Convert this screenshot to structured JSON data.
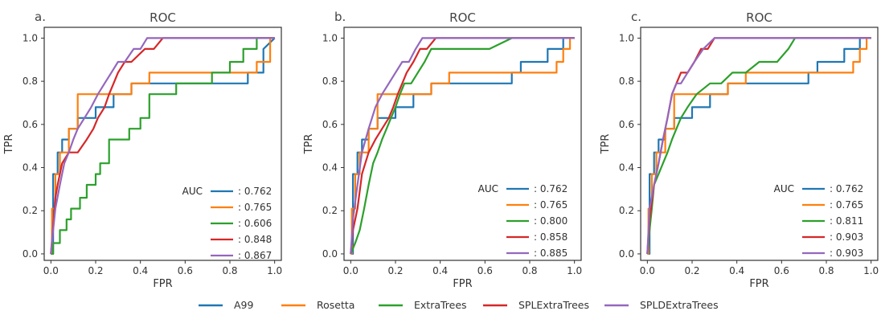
{
  "colors": {
    "A99": "#1f77b4",
    "Rosetta": "#ff7f0e",
    "ExtraTrees": "#2ca02c",
    "SPLExtraTrees": "#d62728",
    "SPLDExtraTrees": "#9467bd",
    "frame": "#333333"
  },
  "legend": {
    "entries": [
      "A99",
      "Rosetta",
      "ExtraTrees",
      "SPLExtraTrees",
      "SPLDExtraTrees"
    ]
  },
  "chart_data": [
    {
      "type": "line",
      "letter": "a.",
      "title": "ROC",
      "xlabel": "FPR",
      "ylabel": "TPR",
      "xlim": [
        -0.03,
        1.03
      ],
      "ylim": [
        -0.03,
        1.05
      ],
      "xticks": [
        "0.0",
        "0.2",
        "0.4",
        "0.6",
        "0.8",
        "1.0"
      ],
      "yticks": [
        "0.0",
        "0.2",
        "0.4",
        "0.6",
        "0.8",
        "1.0"
      ],
      "auc_label": "AUC",
      "grid": false,
      "legend_position": "lower-right",
      "series": [
        {
          "name": "A99",
          "auc": ": 0.762",
          "x": [
            0,
            0.01,
            0.01,
            0.03,
            0.03,
            0.05,
            0.05,
            0.08,
            0.08,
            0.12,
            0.12,
            0.2,
            0.2,
            0.28,
            0.28,
            0.36,
            0.36,
            0.52,
            0.52,
            0.88,
            0.88,
            0.95,
            0.95,
            1.0
          ],
          "y": [
            0,
            0,
            0.37,
            0.37,
            0.47,
            0.47,
            0.53,
            0.53,
            0.58,
            0.58,
            0.63,
            0.63,
            0.68,
            0.68,
            0.74,
            0.74,
            0.79,
            0.79,
            0.79,
            0.79,
            0.84,
            0.84,
            0.95,
            1.0
          ]
        },
        {
          "name": "Rosetta",
          "auc": ": 0.765",
          "x": [
            0,
            0.005,
            0.005,
            0.02,
            0.02,
            0.04,
            0.04,
            0.08,
            0.08,
            0.12,
            0.12,
            0.36,
            0.36,
            0.44,
            0.44,
            0.92,
            0.92,
            0.98,
            0.98,
            1.0
          ],
          "y": [
            0,
            0,
            0.21,
            0.21,
            0.37,
            0.37,
            0.47,
            0.47,
            0.58,
            0.58,
            0.74,
            0.74,
            0.79,
            0.79,
            0.84,
            0.84,
            0.89,
            0.89,
            1.0,
            1.0
          ]
        },
        {
          "name": "ExtraTrees",
          "auc": ": 0.606",
          "x": [
            0,
            0.01,
            0.01,
            0.04,
            0.04,
            0.07,
            0.07,
            0.09,
            0.09,
            0.13,
            0.13,
            0.16,
            0.16,
            0.2,
            0.2,
            0.22,
            0.22,
            0.26,
            0.26,
            0.35,
            0.35,
            0.4,
            0.4,
            0.44,
            0.44,
            0.56,
            0.56,
            0.72,
            0.72,
            0.8,
            0.8,
            0.86,
            0.86,
            0.92,
            0.92,
            0.98,
            0.98,
            1.0
          ],
          "y": [
            0,
            0,
            0.05,
            0.05,
            0.11,
            0.11,
            0.16,
            0.16,
            0.21,
            0.21,
            0.26,
            0.26,
            0.32,
            0.32,
            0.37,
            0.37,
            0.42,
            0.42,
            0.53,
            0.53,
            0.58,
            0.58,
            0.63,
            0.63,
            0.74,
            0.74,
            0.79,
            0.79,
            0.84,
            0.84,
            0.89,
            0.89,
            0.95,
            0.95,
            1.0,
            1.0,
            1.0,
            1.0
          ]
        },
        {
          "name": "SPLExtraTrees",
          "auc": ": 0.848",
          "x": [
            0,
            0.02,
            0.03,
            0.05,
            0.08,
            0.12,
            0.16,
            0.19,
            0.21,
            0.24,
            0.26,
            0.28,
            0.3,
            0.33,
            0.36,
            0.42,
            0.46,
            0.5,
            0.55,
            0.58,
            1.0
          ],
          "y": [
            0,
            0.26,
            0.32,
            0.42,
            0.47,
            0.47,
            0.53,
            0.58,
            0.63,
            0.68,
            0.74,
            0.79,
            0.84,
            0.89,
            0.89,
            0.95,
            0.95,
            1.0,
            1.0,
            1.0,
            1.0
          ]
        },
        {
          "name": "SPLDExtraTrees",
          "auc": ": 0.867",
          "x": [
            0,
            0.01,
            0.02,
            0.04,
            0.06,
            0.08,
            0.1,
            0.12,
            0.15,
            0.18,
            0.21,
            0.24,
            0.27,
            0.3,
            0.33,
            0.37,
            0.4,
            0.43,
            0.46,
            1.0
          ],
          "y": [
            0,
            0.11,
            0.21,
            0.32,
            0.42,
            0.47,
            0.53,
            0.58,
            0.63,
            0.68,
            0.74,
            0.79,
            0.84,
            0.89,
            0.89,
            0.95,
            0.95,
            1.0,
            1.0,
            1.0
          ]
        }
      ]
    },
    {
      "type": "line",
      "letter": "b.",
      "title": "ROC",
      "xlabel": "FPR",
      "ylabel": "TPR",
      "xlim": [
        -0.03,
        1.03
      ],
      "ylim": [
        -0.03,
        1.05
      ],
      "xticks": [
        "0.0",
        "0.2",
        "0.4",
        "0.6",
        "0.8",
        "1.0"
      ],
      "yticks": [
        "0.0",
        "0.2",
        "0.4",
        "0.6",
        "0.8",
        "1.0"
      ],
      "auc_label": "AUC",
      "grid": false,
      "legend_position": "lower-right",
      "series": [
        {
          "name": "A99",
          "auc": ": 0.762",
          "x": [
            0,
            0.01,
            0.01,
            0.03,
            0.03,
            0.05,
            0.05,
            0.08,
            0.08,
            0.12,
            0.12,
            0.2,
            0.2,
            0.28,
            0.28,
            0.36,
            0.36,
            0.52,
            0.52,
            0.72,
            0.72,
            0.76,
            0.76,
            0.88,
            0.88,
            0.95,
            0.95,
            1.0
          ],
          "y": [
            0,
            0,
            0.37,
            0.37,
            0.47,
            0.47,
            0.53,
            0.53,
            0.58,
            0.58,
            0.63,
            0.63,
            0.68,
            0.68,
            0.74,
            0.74,
            0.79,
            0.79,
            0.79,
            0.79,
            0.84,
            0.84,
            0.89,
            0.89,
            0.95,
            0.95,
            1.0,
            1.0
          ]
        },
        {
          "name": "Rosetta",
          "auc": ": 0.765",
          "x": [
            0,
            0.005,
            0.005,
            0.02,
            0.02,
            0.04,
            0.04,
            0.08,
            0.08,
            0.12,
            0.12,
            0.36,
            0.36,
            0.44,
            0.44,
            0.92,
            0.92,
            0.95,
            0.95,
            0.98,
            0.98,
            1.0
          ],
          "y": [
            0,
            0,
            0.21,
            0.21,
            0.37,
            0.37,
            0.47,
            0.47,
            0.58,
            0.58,
            0.74,
            0.74,
            0.79,
            0.79,
            0.84,
            0.84,
            0.89,
            0.89,
            0.95,
            0.95,
            1.0,
            1.0
          ]
        },
        {
          "name": "ExtraTrees",
          "auc": ": 0.800",
          "x": [
            0,
            0.02,
            0.04,
            0.06,
            0.08,
            0.1,
            0.12,
            0.14,
            0.16,
            0.18,
            0.2,
            0.22,
            0.24,
            0.27,
            0.3,
            0.33,
            0.36,
            0.4,
            0.5,
            0.62,
            0.72,
            0.74,
            1.0
          ],
          "y": [
            0,
            0.05,
            0.11,
            0.21,
            0.32,
            0.42,
            0.47,
            0.53,
            0.58,
            0.63,
            0.68,
            0.74,
            0.79,
            0.79,
            0.84,
            0.89,
            0.95,
            0.95,
            0.95,
            0.95,
            1.0,
            1.0,
            1.0
          ]
        },
        {
          "name": "SPLExtraTrees",
          "auc": ": 0.858",
          "x": [
            0,
            0.01,
            0.03,
            0.05,
            0.08,
            0.11,
            0.14,
            0.17,
            0.19,
            0.21,
            0.23,
            0.25,
            0.28,
            0.31,
            0.34,
            0.38,
            0.42,
            1.0
          ],
          "y": [
            0,
            0.11,
            0.21,
            0.37,
            0.47,
            0.53,
            0.58,
            0.63,
            0.68,
            0.74,
            0.79,
            0.84,
            0.89,
            0.95,
            0.95,
            1.0,
            1.0,
            1.0
          ]
        },
        {
          "name": "SPLDExtraTrees",
          "auc": ": 0.885",
          "x": [
            0,
            0.01,
            0.03,
            0.05,
            0.08,
            0.11,
            0.14,
            0.17,
            0.2,
            0.23,
            0.26,
            0.29,
            0.32,
            0.35,
            0.38,
            1.0
          ],
          "y": [
            0,
            0.16,
            0.32,
            0.47,
            0.58,
            0.68,
            0.74,
            0.79,
            0.84,
            0.89,
            0.89,
            0.95,
            1.0,
            1.0,
            1.0,
            1.0
          ]
        }
      ]
    },
    {
      "type": "line",
      "letter": "c.",
      "title": "ROC",
      "xlabel": "FPR",
      "ylabel": "TPR",
      "xlim": [
        -0.03,
        1.03
      ],
      "ylim": [
        -0.03,
        1.05
      ],
      "xticks": [
        "0.0",
        "0.2",
        "0.4",
        "0.6",
        "0.8",
        "1.0"
      ],
      "yticks": [
        "0.0",
        "0.2",
        "0.4",
        "0.6",
        "0.8",
        "1.0"
      ],
      "auc_label": "AUC",
      "grid": false,
      "legend_position": "lower-right",
      "series": [
        {
          "name": "A99",
          "auc": ": 0.762",
          "x": [
            0,
            0.01,
            0.01,
            0.03,
            0.03,
            0.05,
            0.05,
            0.08,
            0.08,
            0.12,
            0.12,
            0.2,
            0.2,
            0.28,
            0.28,
            0.36,
            0.36,
            0.52,
            0.52,
            0.72,
            0.72,
            0.76,
            0.76,
            0.88,
            0.88,
            0.95,
            0.95,
            1.0
          ],
          "y": [
            0,
            0,
            0.37,
            0.37,
            0.47,
            0.47,
            0.53,
            0.53,
            0.58,
            0.58,
            0.63,
            0.63,
            0.68,
            0.68,
            0.74,
            0.74,
            0.79,
            0.79,
            0.79,
            0.79,
            0.84,
            0.84,
            0.89,
            0.89,
            0.95,
            0.95,
            1.0,
            1.0
          ]
        },
        {
          "name": "Rosetta",
          "auc": ": 0.765",
          "x": [
            0,
            0.005,
            0.005,
            0.02,
            0.02,
            0.04,
            0.04,
            0.08,
            0.08,
            0.12,
            0.12,
            0.36,
            0.36,
            0.44,
            0.44,
            0.92,
            0.92,
            0.95,
            0.95,
            0.98,
            0.98,
            1.0
          ],
          "y": [
            0,
            0,
            0.21,
            0.21,
            0.37,
            0.37,
            0.47,
            0.47,
            0.58,
            0.58,
            0.74,
            0.74,
            0.79,
            0.79,
            0.84,
            0.84,
            0.89,
            0.89,
            0.95,
            0.95,
            1.0,
            1.0
          ]
        },
        {
          "name": "ExtraTrees",
          "auc": ": 0.811",
          "x": [
            0,
            0.01,
            0.02,
            0.03,
            0.05,
            0.07,
            0.09,
            0.11,
            0.13,
            0.15,
            0.18,
            0.22,
            0.28,
            0.33,
            0.38,
            0.44,
            0.5,
            0.58,
            0.63,
            0.66,
            1.0
          ],
          "y": [
            0,
            0.11,
            0.21,
            0.32,
            0.37,
            0.42,
            0.47,
            0.53,
            0.58,
            0.63,
            0.68,
            0.74,
            0.79,
            0.79,
            0.84,
            0.84,
            0.89,
            0.89,
            0.95,
            1.0,
            1.0
          ]
        },
        {
          "name": "SPLExtraTrees",
          "auc": ": 0.903",
          "x": [
            0,
            0.01,
            0.03,
            0.05,
            0.07,
            0.09,
            0.11,
            0.13,
            0.15,
            0.18,
            0.21,
            0.24,
            0.27,
            0.3,
            0.33,
            1.0
          ],
          "y": [
            0,
            0.16,
            0.32,
            0.42,
            0.53,
            0.63,
            0.74,
            0.79,
            0.84,
            0.84,
            0.89,
            0.95,
            0.95,
            1.0,
            1.0,
            1.0
          ]
        },
        {
          "name": "SPLDExtraTrees",
          "auc": ": 0.903",
          "x": [
            0,
            0.01,
            0.03,
            0.05,
            0.07,
            0.09,
            0.11,
            0.13,
            0.15,
            0.18,
            0.21,
            0.25,
            0.3,
            0.34,
            1.0
          ],
          "y": [
            0,
            0.21,
            0.32,
            0.42,
            0.53,
            0.63,
            0.74,
            0.79,
            0.79,
            0.84,
            0.89,
            0.95,
            1.0,
            1.0,
            1.0
          ]
        }
      ]
    }
  ]
}
